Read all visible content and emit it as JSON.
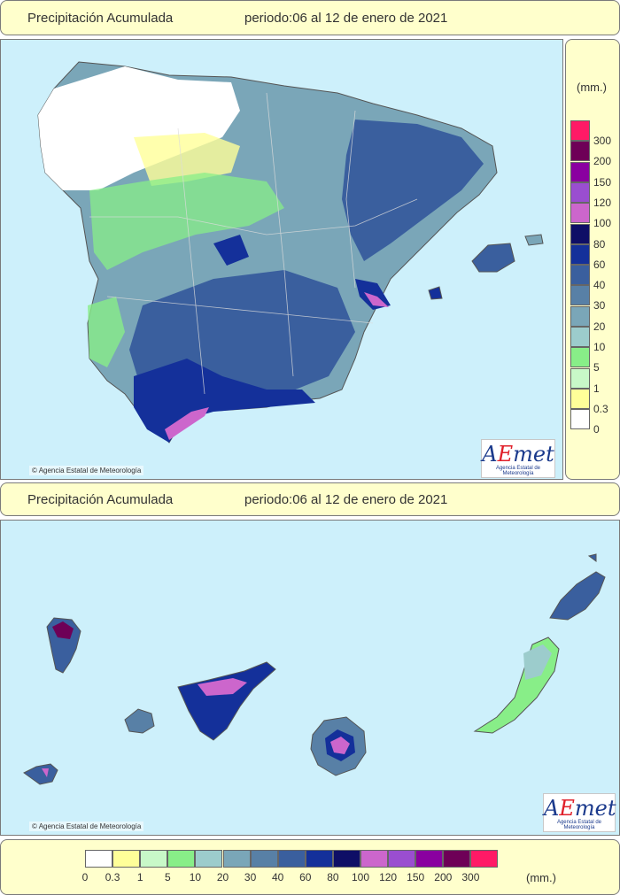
{
  "top": {
    "title": "Precipitación Acumulada",
    "period": "periodo:06 al 12 de enero de 2021"
  },
  "bottom": {
    "title": "Precipitación Acumulada",
    "period": "periodo:06 al 12 de enero de 2021"
  },
  "credit": "Agencia Estatal de Meteorología",
  "logo": {
    "brand_a": "A",
    "brand_e": "E",
    "brand_rest": "met",
    "subtitle": "Agencia Estatal de Meteorología"
  },
  "legend": {
    "unit": "(mm.)",
    "classes": [
      {
        "label": "300",
        "color": "#ff1a66"
      },
      {
        "label": "200",
        "color": "#6e0057"
      },
      {
        "label": "150",
        "color": "#8a00a0"
      },
      {
        "label": "120",
        "color": "#9a4ed0"
      },
      {
        "label": "100",
        "color": "#cc66cc"
      },
      {
        "label": "80",
        "color": "#0e0e66"
      },
      {
        "label": "60",
        "color": "#14309a"
      },
      {
        "label": "40",
        "color": "#3a5f9e"
      },
      {
        "label": "30",
        "color": "#5880a6"
      },
      {
        "label": "20",
        "color": "#7aa6b8"
      },
      {
        "label": "10",
        "color": "#9ccccc"
      },
      {
        "label": "5",
        "color": "#88ee88"
      },
      {
        "label": "1",
        "color": "#c8f8c8"
      },
      {
        "label": "0.3",
        "color": "#ffff99"
      },
      {
        "label": "0",
        "color": "#ffffff"
      }
    ]
  }
}
